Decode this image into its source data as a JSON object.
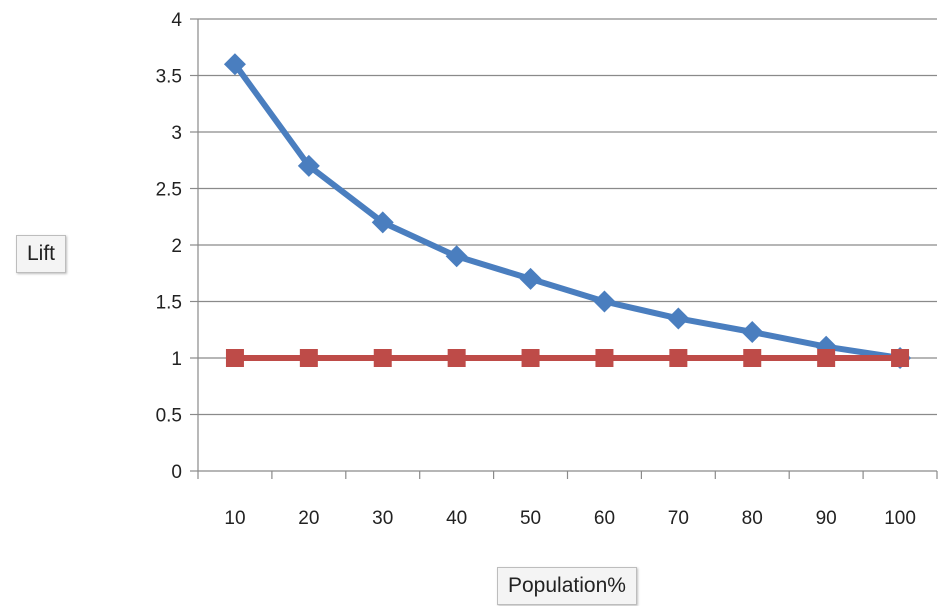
{
  "chart_data": {
    "type": "line",
    "title": "",
    "xlabel": "Population%",
    "ylabel": "Lift",
    "categories": [
      "10",
      "20",
      "30",
      "40",
      "50",
      "60",
      "70",
      "80",
      "90",
      "100"
    ],
    "series": [
      {
        "values": [
          3.6,
          2.7,
          2.2,
          1.9,
          1.7,
          1.5,
          1.35,
          1.23,
          1.1,
          1.0
        ],
        "color": "#4a7ebf",
        "marker": "diamond"
      },
      {
        "values": [
          1,
          1,
          1,
          1,
          1,
          1,
          1,
          1,
          1,
          1
        ],
        "color": "#be4b48",
        "marker": "square"
      }
    ],
    "yticks": [
      "0",
      "0.5",
      "1",
      "1.5",
      "2",
      "2.5",
      "3",
      "3.5",
      "4"
    ],
    "ylim": [
      0,
      4
    ],
    "grid": true,
    "legend": "none"
  }
}
